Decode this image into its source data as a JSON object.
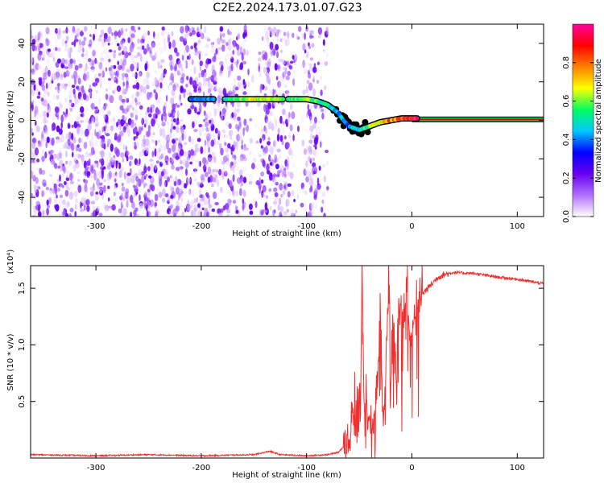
{
  "title": "C2E2.2024.173.01.07.G23",
  "chart_data": [
    {
      "type": "heatmap",
      "xlabel": "Height of straight line (km)",
      "ylabel": "Frequency (Hz)",
      "xlim": [
        -362,
        125
      ],
      "ylim": [
        -50,
        50
      ],
      "xticks": [
        -300,
        -200,
        -100,
        0,
        100
      ],
      "yticks": [
        -40,
        -20,
        0,
        20,
        40
      ],
      "colorbar": {
        "label": "Normalized spectral amplitude",
        "range": [
          0,
          1
        ],
        "ticks": [
          0.0,
          0.2,
          0.4,
          0.6,
          0.8
        ],
        "colormap": [
          "#ffffff",
          "#b070ff",
          "#6a00f0",
          "#0000ff",
          "#00c8ff",
          "#00ff60",
          "#ffff00",
          "#ff8000",
          "#ff0000",
          "#ff00a0"
        ]
      },
      "noise_region": {
        "x_range": [
          -362,
          -80
        ],
        "freq_range": [
          -50,
          48
        ]
      },
      "signal_track": {
        "x": [
          -210,
          -195,
          -175,
          -160,
          -145,
          -130,
          -115,
          -100,
          -90,
          -80,
          -70,
          -65,
          -60,
          -55,
          -50,
          -45,
          -40,
          -30,
          -20,
          -10,
          0,
          5
        ],
        "frequency": [
          11,
          11,
          11,
          11,
          11,
          11,
          11,
          11,
          10,
          8,
          4,
          0,
          -3,
          -4,
          -5,
          -4,
          -3,
          -1,
          0,
          1,
          1,
          1
        ],
        "amplitude": [
          0.35,
          0.4,
          0.5,
          0.6,
          0.65,
          0.6,
          0.55,
          0.6,
          0.55,
          0.5,
          0.45,
          0.4,
          0.4,
          0.45,
          0.5,
          0.55,
          0.6,
          0.65,
          0.8,
          0.85,
          0.9,
          0.9
        ]
      },
      "carrier_line": {
        "x_range": [
          0,
          125
        ],
        "frequency": 0.5,
        "amplitude": 0.9
      }
    },
    {
      "type": "line",
      "xlabel": "Height of straight line (km)",
      "ylabel": "SNR (10 * v/v)",
      "multiplier": "(x10⁴)",
      "xlim": [
        -362,
        125
      ],
      "ylim": [
        0,
        1.7
      ],
      "xticks": [
        -300,
        -200,
        -100,
        0,
        100
      ],
      "yticks": [
        0.5,
        1.0,
        1.5
      ],
      "ytick_labels": [
        "0.5",
        "1.0",
        "1.5"
      ],
      "color": "#f03030",
      "series": [
        {
          "x": [
            -362,
            -300,
            -250,
            -200,
            -150,
            -135,
            -125,
            -100,
            -80,
            -70,
            -60,
            -55,
            -50,
            -47,
            -45,
            -42,
            -38,
            -35,
            -30,
            -27,
            -25,
            -22,
            -20,
            -18,
            -15,
            -12,
            -10,
            -8,
            -5,
            -2,
            0,
            3,
            5,
            10,
            15,
            20,
            25,
            30,
            40,
            60,
            80,
            100,
            125
          ],
          "y": [
            0.03,
            0.02,
            0.03,
            0.02,
            0.03,
            0.06,
            0.03,
            0.02,
            0.03,
            0.05,
            0.15,
            0.4,
            0.3,
            1.4,
            0.25,
            0.3,
            0.2,
            0.5,
            1.2,
            0.3,
            0.8,
            1.5,
            0.6,
            1.3,
            0.8,
            1.4,
            1.0,
            1.2,
            1.5,
            1.0,
            1.1,
            1.3,
            1.4,
            1.45,
            1.5,
            1.55,
            1.6,
            1.62,
            1.64,
            1.63,
            1.6,
            1.58,
            1.54
          ]
        }
      ]
    }
  ]
}
